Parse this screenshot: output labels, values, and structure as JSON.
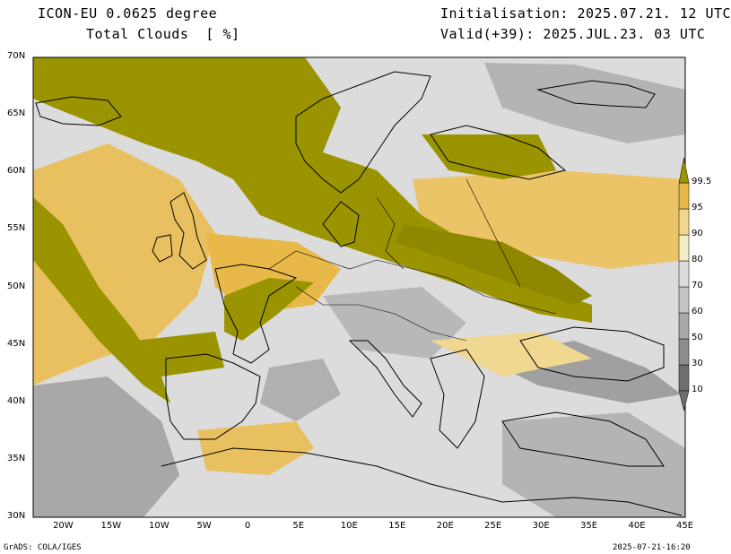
{
  "header": {
    "model": "ICON-EU 0.0625 degree",
    "field": "Total Clouds  [ %]",
    "init": "Initialisation: 2025.07.21. 12 UTC",
    "valid": "Valid(+39): 2025.JUL.23. 03 UTC"
  },
  "map": {
    "lat_labels": [
      "70N",
      "65N",
      "60N",
      "55N",
      "50N",
      "45N",
      "40N",
      "35N",
      "30N"
    ],
    "lon_labels": [
      "20W",
      "15W",
      "10W",
      "5W",
      "0",
      "5E",
      "10E",
      "15E",
      "20E",
      "25E",
      "30E",
      "35E",
      "40E",
      "45E"
    ],
    "lat_range": [
      30,
      70
    ],
    "lon_range": [
      -23,
      45
    ]
  },
  "colorbar": {
    "labels": [
      "10",
      "30",
      "50",
      "60",
      "70",
      "80",
      "90",
      "95",
      "99.5"
    ],
    "colors": [
      "#6e6e6e",
      "#8c8c8c",
      "#a8a8a8",
      "#c4c4c4",
      "#dcdcdc",
      "#f2eec8",
      "#f0d890",
      "#e8b848",
      "#9a9400"
    ]
  },
  "footer": {
    "credit": "GrADS: COLA/IGES",
    "timestamp": "2025-07-21-16:20"
  },
  "colors": {
    "olive": "#9a9400",
    "gold": "#e8b848",
    "light_gold": "#f0d890",
    "clear": "#dcdcdc",
    "grey": "#a8a8a8"
  }
}
